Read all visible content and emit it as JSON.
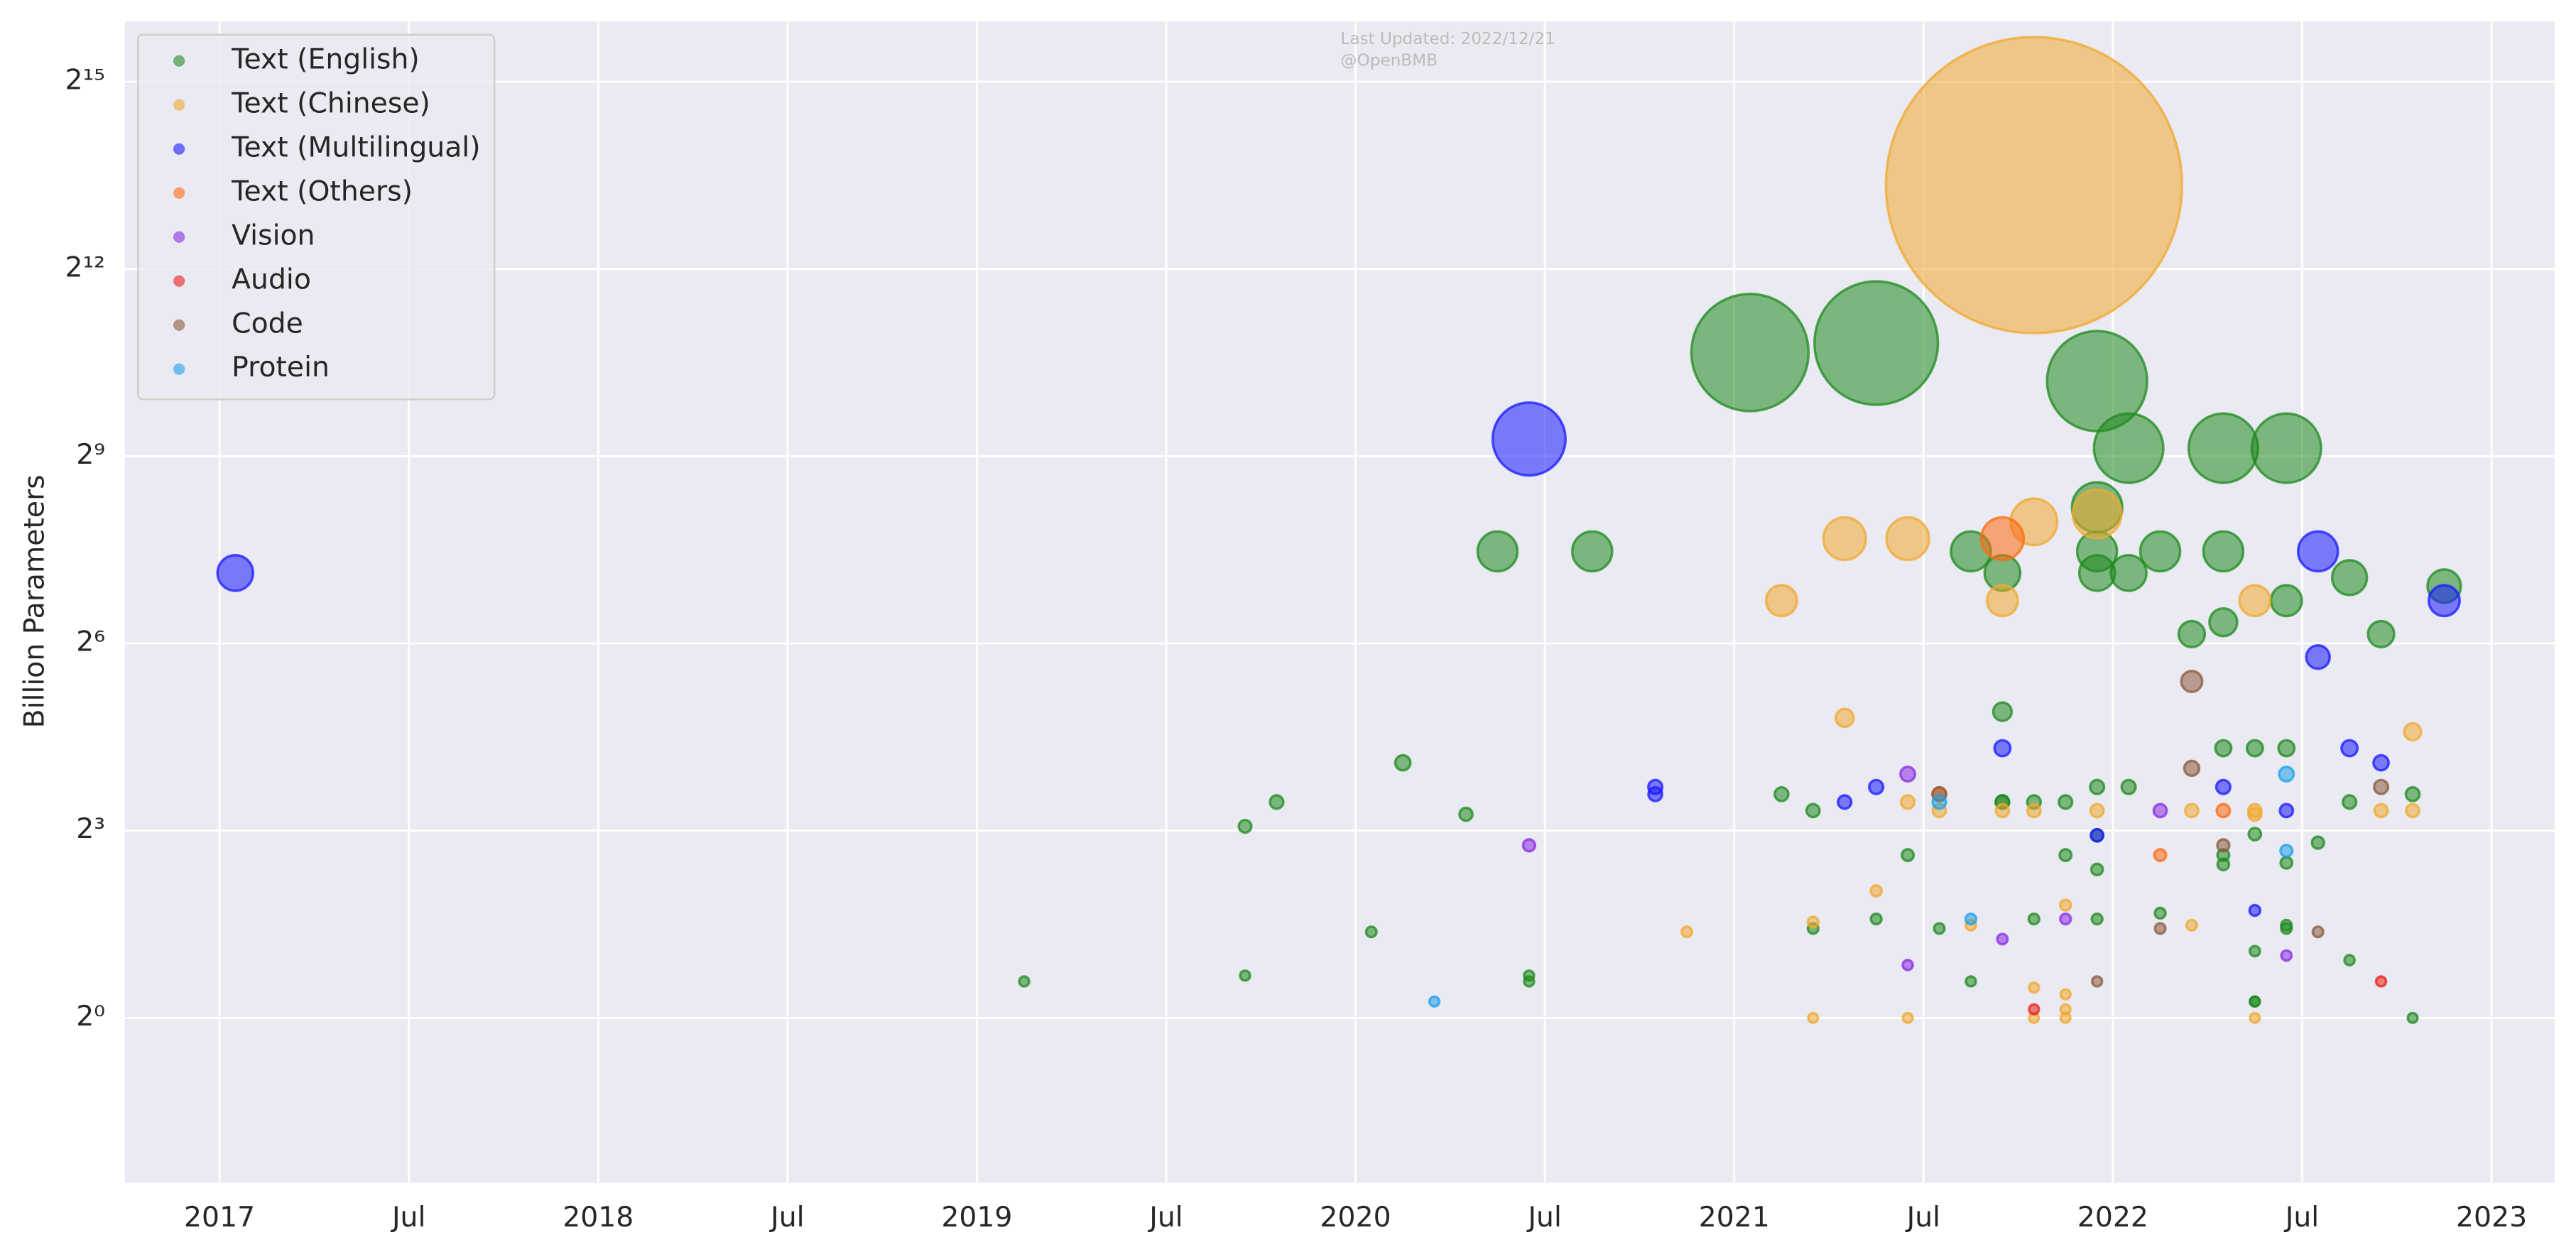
{
  "chart_data": {
    "type": "scatter",
    "bubble": true,
    "log_y": true,
    "log_base": 2,
    "grid": true,
    "legend": "upper left",
    "annotations": [
      "Last Updated: 2022/12/21",
      "@OpenBMB"
    ],
    "ylabel": "Billion Parameters",
    "xlim": [
      "2016-10",
      "2023-03"
    ],
    "ylim": [
      0.16,
      64000
    ],
    "xticks": [
      {
        "value": "2017-01",
        "label": "2017"
      },
      {
        "value": "2017-07",
        "label": "Jul"
      },
      {
        "value": "2018-01",
        "label": "2018"
      },
      {
        "value": "2018-07",
        "label": "Jul"
      },
      {
        "value": "2019-01",
        "label": "2019"
      },
      {
        "value": "2019-07",
        "label": "Jul"
      },
      {
        "value": "2020-01",
        "label": "2020"
      },
      {
        "value": "2020-07",
        "label": "Jul"
      },
      {
        "value": "2021-01",
        "label": "2021"
      },
      {
        "value": "2021-07",
        "label": "Jul"
      },
      {
        "value": "2022-01",
        "label": "2022"
      },
      {
        "value": "2022-07",
        "label": "Jul"
      },
      {
        "value": "2023-01",
        "label": "2023"
      }
    ],
    "yticks": [
      {
        "value": 1,
        "label": "2⁰"
      },
      {
        "value": 8,
        "label": "2³"
      },
      {
        "value": 64,
        "label": "2⁶"
      },
      {
        "value": 512,
        "label": "2⁹"
      },
      {
        "value": 4096,
        "label": "2¹²"
      },
      {
        "value": 32768,
        "label": "2¹⁵"
      }
    ],
    "series": [
      {
        "name": "Text (English)",
        "color": "#1f8a1f",
        "x": [
          "2019-02",
          "2019-09",
          "2019-09",
          "2019-10",
          "2020-01",
          "2020-02",
          "2020-04",
          "2020-05",
          "2020-06",
          "2020-06",
          "2020-08",
          "2021-01",
          "2021-02",
          "2021-03",
          "2021-03",
          "2021-05",
          "2021-05",
          "2021-06",
          "2021-07",
          "2021-08",
          "2021-08",
          "2021-09",
          "2021-09",
          "2021-09",
          "2021-09",
          "2021-10",
          "2021-10",
          "2021-11",
          "2021-11",
          "2021-12",
          "2021-12",
          "2021-12",
          "2021-12",
          "2021-12",
          "2021-12",
          "2021-12",
          "2021-12",
          "2022-01",
          "2022-01",
          "2022-01",
          "2022-02",
          "2022-02",
          "2022-03",
          "2022-04",
          "2022-04",
          "2022-04",
          "2022-04",
          "2022-04",
          "2022-04",
          "2022-05",
          "2022-05",
          "2022-05",
          "2022-05",
          "2022-05",
          "2022-06",
          "2022-06",
          "2022-06",
          "2022-06",
          "2022-06",
          "2022-06",
          "2022-07",
          "2022-08",
          "2022-08",
          "2022-08",
          "2022-09",
          "2022-10",
          "2022-10",
          "2022-11"
        ],
        "values": [
          1.5,
          1.6,
          8.4,
          11,
          2.6,
          17,
          9.6,
          178,
          1.5,
          1.6,
          178,
          1620,
          12,
          10,
          2.7,
          3.0,
          1800,
          6.1,
          2.7,
          1.5,
          178,
          140,
          11,
          30,
          11,
          3.0,
          11,
          11,
          6.1,
          290,
          7.6,
          140,
          3.0,
          1180,
          13,
          5.2,
          178,
          140,
          13,
          560,
          178,
          3.2,
          71,
          560,
          20,
          5.5,
          81,
          178,
          6.1,
          2.1,
          20,
          1.2,
          1.2,
          7.7,
          2.8,
          20,
          103,
          5.6,
          2.7,
          560,
          7.0,
          133,
          11,
          1.9,
          71,
          12,
          1.0,
          121
        ]
      },
      {
        "name": "Text (Chinese)",
        "color": "#f0a830",
        "x": [
          "2020-11",
          "2021-02",
          "2021-03",
          "2021-03",
          "2021-04",
          "2021-04",
          "2021-05",
          "2021-06",
          "2021-06",
          "2021-06",
          "2021-07",
          "2021-08",
          "2021-09",
          "2021-09",
          "2021-10",
          "2021-10",
          "2021-10",
          "2021-10",
          "2021-10",
          "2021-11",
          "2021-11",
          "2021-11",
          "2021-11",
          "2021-12",
          "2021-12",
          "2022-03",
          "2022-03",
          "2022-05",
          "2022-05",
          "2022-05",
          "2022-05",
          "2022-09",
          "2022-10",
          "2022-10"
        ],
        "values": [
          2.6,
          103,
          1.0,
          2.9,
          28,
          205,
          4.1,
          1.0,
          205,
          11,
          10,
          2.8,
          10,
          103,
          10400,
          247,
          1.4,
          1.0,
          10,
          1.0,
          3.5,
          1.3,
          1.1,
          270,
          10,
          2.8,
          10,
          10,
          103,
          9.6,
          1.0,
          10,
          10,
          24
        ]
      },
      {
        "name": "Text (Multilingual)",
        "color": "#1a1aff",
        "x": [
          "2017-01",
          "2020-06",
          "2020-10",
          "2020-10",
          "2021-04",
          "2021-05",
          "2021-09",
          "2021-12",
          "2022-04",
          "2022-05",
          "2022-06",
          "2022-07",
          "2022-07",
          "2022-08",
          "2022-09",
          "2022-11"
        ],
        "values": [
          140,
          620,
          13,
          12,
          11,
          13,
          20,
          7.6,
          13,
          3.3,
          10,
          178,
          55,
          20,
          17,
          103
        ]
      },
      {
        "name": "Text (Others)",
        "color": "#ff6a10",
        "x": [
          "2021-07",
          "2021-09",
          "2022-02",
          "2022-04"
        ],
        "values": [
          12,
          205,
          6.1,
          10
        ]
      },
      {
        "name": "Vision",
        "color": "#8a2be2",
        "x": [
          "2020-06",
          "2021-06",
          "2021-06",
          "2021-09",
          "2021-11",
          "2022-02",
          "2022-06"
        ],
        "values": [
          6.8,
          1.8,
          15,
          2.4,
          3.0,
          10,
          2.0
        ]
      },
      {
        "name": "Audio",
        "color": "#e8201a",
        "x": [
          "2021-10",
          "2022-09"
        ],
        "values": [
          1.1,
          1.5
        ]
      },
      {
        "name": "Code",
        "color": "#8b5a3c",
        "x": [
          "2021-07",
          "2021-12",
          "2022-02",
          "2022-03",
          "2022-03",
          "2022-04",
          "2022-07",
          "2022-09"
        ],
        "values": [
          12,
          1.5,
          2.7,
          42,
          16,
          6.8,
          2.6,
          13
        ]
      },
      {
        "name": "Protein",
        "color": "#1ea0e8",
        "x": [
          "2020-03",
          "2021-07",
          "2021-08",
          "2022-06",
          "2022-06"
        ],
        "values": [
          1.2,
          11,
          3.0,
          15,
          6.4
        ]
      }
    ]
  }
}
